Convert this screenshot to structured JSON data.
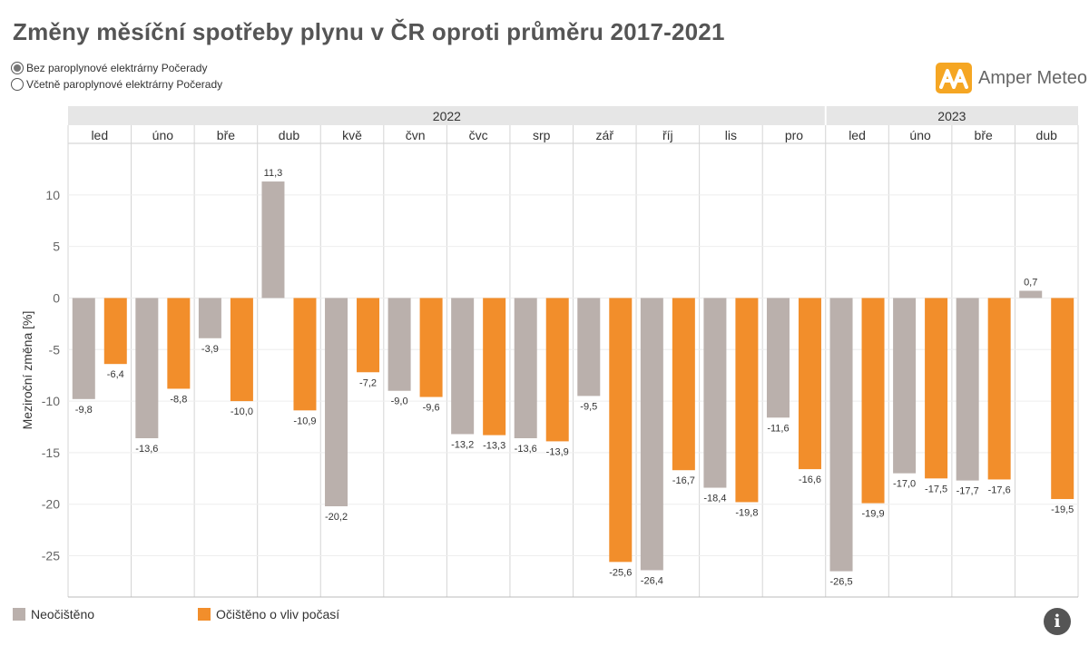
{
  "header": {
    "title": "Změny měsíční spotřeby plynu v ČR oproti průměru 2017-2021"
  },
  "filter": {
    "options": [
      {
        "label": "Bez paroplynové elektrárny Počerady",
        "selected": true
      },
      {
        "label": "Včetně paroplynové elektrárny Počerady",
        "selected": false
      }
    ]
  },
  "brand": {
    "name": "Amper Meteo",
    "logo_icon": "amper-meteo-logo-icon",
    "color": "#f5a623"
  },
  "info_button": {
    "icon": "info-icon",
    "glyph": "i"
  },
  "chart_data": {
    "type": "bar",
    "title": "Změny měsíční spotřeby plynu v ČR oproti průměru 2017-2021",
    "ylabel": "Meziroční změna [%]",
    "xlabel": "",
    "ylim": [
      -29,
      15
    ],
    "yticks": [
      10,
      5,
      0,
      -5,
      -10,
      -15,
      -20,
      -25
    ],
    "grid": true,
    "legend_position": "bottom-left",
    "years": [
      {
        "label": "2022",
        "months": 12
      },
      {
        "label": "2023",
        "months": 4
      }
    ],
    "categories": [
      "led",
      "úno",
      "bře",
      "dub",
      "kvě",
      "čvn",
      "čvc",
      "srp",
      "zář",
      "říj",
      "lis",
      "pro",
      "led",
      "úno",
      "bře",
      "dub"
    ],
    "series": [
      {
        "name": "Neočištěno",
        "color": "#bab0ac",
        "values": [
          -9.8,
          -13.6,
          -3.9,
          11.3,
          -20.2,
          -9.0,
          -13.2,
          -13.6,
          -9.5,
          -26.4,
          -18.4,
          -11.6,
          -26.5,
          -17.0,
          -17.7,
          0.7
        ],
        "labels": [
          "-9,8",
          "-13,6",
          "-3,9",
          "11,3",
          "-20,2",
          "-9,0",
          "-13,2",
          "-13,6",
          "-9,5",
          "-26,4",
          "-18,4",
          "-11,6",
          "-26,5",
          "-17,0",
          "-17,7",
          "0,7"
        ]
      },
      {
        "name": "Očištěno o vliv počasí",
        "color": "#f28e2b",
        "values": [
          -6.4,
          -8.8,
          -10.0,
          -10.9,
          -7.2,
          -9.6,
          -13.3,
          -13.9,
          -25.6,
          -16.7,
          -19.8,
          -16.6,
          -19.9,
          -17.5,
          -17.6,
          -19.5
        ],
        "labels": [
          "-6,4",
          "-8,8",
          "-10,0",
          "-10,9",
          "-7,2",
          "-9,6",
          "-13,3",
          "-13,9",
          "-25,6",
          "-16,7",
          "-19,8",
          "-16,6",
          "-19,9",
          "-17,5",
          "-17,6",
          "-19,5"
        ]
      }
    ]
  }
}
